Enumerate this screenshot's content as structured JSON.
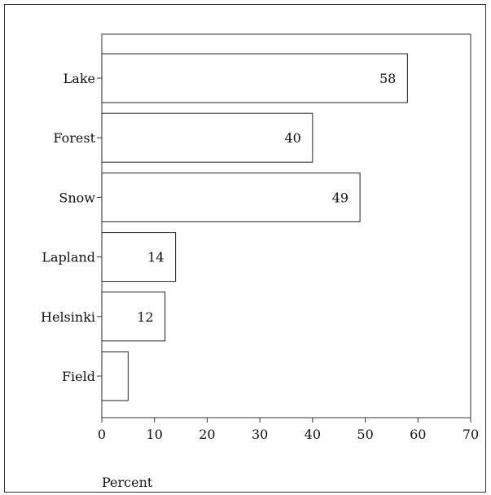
{
  "chart_data": {
    "type": "bar",
    "orientation": "horizontal",
    "categories": [
      "Lake",
      "Forest",
      "Snow",
      "Lapland",
      "Helsinki",
      "Field"
    ],
    "values": [
      58,
      40,
      49,
      14,
      12,
      5
    ],
    "data_labels": [
      "58",
      "40",
      "49",
      "14",
      "12",
      ""
    ],
    "xlim": [
      0,
      70
    ],
    "xticks": [
      0,
      10,
      20,
      30,
      40,
      50,
      60,
      70
    ],
    "xlabel": "Percent",
    "ylabel": "",
    "title": "",
    "grid": false,
    "bar_fill": "#ffffff",
    "bar_stroke": "#222222"
  }
}
